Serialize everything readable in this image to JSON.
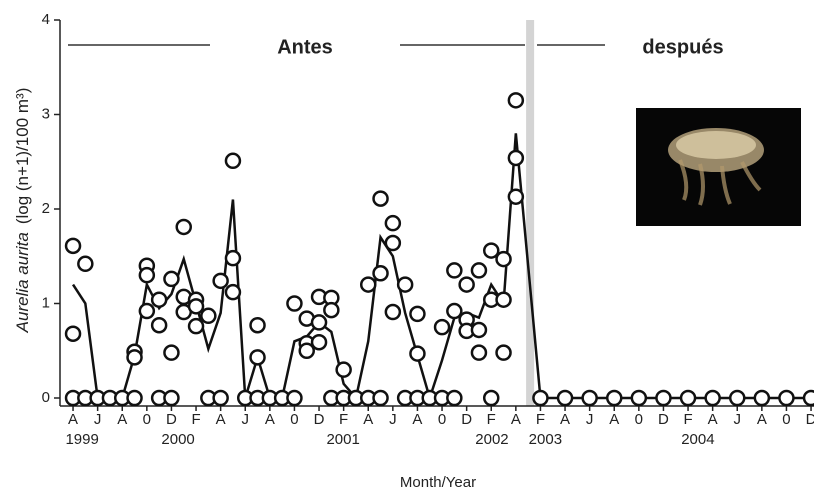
{
  "chart_data": {
    "type": "scatter",
    "annotation_before": "Antes",
    "annotation_after": "después",
    "ylabel_species": "Aurelia aurita",
    "ylabel_units": "(log (n+1)/100 m³)",
    "xlabel": "Month/Year",
    "xlim": [
      -0.53,
      30.12
    ],
    "ylim": [
      0,
      4
    ],
    "yticks": [
      0,
      1,
      2,
      3,
      4
    ],
    "xticks": [
      {
        "value": 0,
        "label": "A"
      },
      {
        "value": 1,
        "label": "J"
      },
      {
        "value": 2,
        "label": "A"
      },
      {
        "value": 3,
        "label": "0"
      },
      {
        "value": 4,
        "label": "D"
      },
      {
        "value": 5,
        "label": "F"
      },
      {
        "value": 6,
        "label": "A"
      },
      {
        "value": 7,
        "label": "J"
      },
      {
        "value": 8,
        "label": "A"
      },
      {
        "value": 9,
        "label": "0"
      },
      {
        "value": 10,
        "label": "D"
      },
      {
        "value": 11,
        "label": "F"
      },
      {
        "value": 12,
        "label": "A"
      },
      {
        "value": 13,
        "label": "J"
      },
      {
        "value": 14,
        "label": "A"
      },
      {
        "value": 15,
        "label": "0"
      },
      {
        "value": 16,
        "label": "D"
      },
      {
        "value": 17,
        "label": "F"
      },
      {
        "value": 18,
        "label": "A"
      },
      {
        "value": 19,
        "label": "F"
      },
      {
        "value": 20,
        "label": "A"
      },
      {
        "value": 21,
        "label": "J"
      },
      {
        "value": 22,
        "label": "A"
      },
      {
        "value": 23,
        "label": "0"
      },
      {
        "value": 24,
        "label": "D"
      },
      {
        "value": 25,
        "label": "F"
      },
      {
        "value": 26,
        "label": "A"
      },
      {
        "value": 27,
        "label": "J"
      },
      {
        "value": 28,
        "label": "A"
      },
      {
        "value": 29,
        "label": "0"
      },
      {
        "value": 30,
        "label": "D"
      }
    ],
    "year_ticks": [
      {
        "value": 0.37,
        "label": "1999"
      },
      {
        "value": 4.27,
        "label": "2000"
      },
      {
        "value": 10.98,
        "label": "2001"
      },
      {
        "value": 17.03,
        "label": "2002"
      },
      {
        "value": 19.2,
        "label": "2003"
      },
      {
        "value": 25.4,
        "label": "2004"
      }
    ],
    "divider_x": 18.58,
    "divider_color": "#d4d4d4",
    "series": [
      {
        "kind": "line",
        "color": "#111111",
        "x": [
          0,
          0.5,
          1,
          1.5,
          2,
          2.5,
          3,
          3.5,
          4,
          4.5,
          5,
          5.5,
          6,
          6.5,
          7,
          7.5,
          8,
          8.5,
          9,
          9.5,
          10,
          10.5,
          11,
          11.5,
          12,
          12.5,
          13,
          13.5,
          14,
          14.5,
          15,
          15.5,
          16,
          16.5,
          17,
          17.5,
          18,
          19,
          20,
          21,
          22,
          23,
          24,
          25,
          26,
          27,
          28,
          29,
          30
        ],
        "values": [
          1.2,
          1.0,
          0,
          0,
          0,
          0.45,
          1.2,
          0.95,
          1.1,
          1.47,
          1.0,
          0.52,
          0.9,
          2.1,
          0,
          0.43,
          0,
          0,
          0.6,
          0.65,
          0.8,
          0.7,
          0.15,
          0,
          0.6,
          1.7,
          1.5,
          0.9,
          0.45,
          0,
          0.4,
          0.85,
          0.9,
          0.85,
          1.2,
          1.0,
          2.8,
          0,
          0,
          0,
          0,
          0,
          0,
          0,
          0,
          0,
          0,
          0,
          0
        ]
      },
      {
        "kind": "points",
        "color": "#111111",
        "x": [
          0,
          0,
          0,
          0.5,
          0.5,
          1,
          1.5,
          2,
          2.5,
          2.5,
          2.5,
          3,
          3,
          3,
          3.5,
          3.5,
          3.5,
          4,
          4,
          4,
          4.5,
          4.5,
          4.5,
          5,
          5,
          5,
          5.5,
          5.5,
          6,
          6,
          6.5,
          6.5,
          6.5,
          7,
          7.5,
          7.5,
          7.5,
          8,
          8.5,
          9,
          9,
          9.5,
          9.5,
          9.5,
          10,
          10,
          10,
          10.5,
          10.5,
          10.5,
          11,
          11,
          11.5,
          12,
          12,
          12.5,
          12.5,
          12.5,
          13,
          13,
          13,
          13.5,
          13.5,
          14,
          14,
          14,
          14.5,
          15,
          15,
          15.5,
          15.5,
          15.5,
          16,
          16,
          16,
          16.5,
          16.5,
          16.5,
          17,
          17,
          17,
          17.5,
          17.5,
          17.5,
          18,
          18,
          18,
          19,
          20,
          21,
          22,
          23,
          24,
          25,
          26,
          27,
          28,
          29,
          30
        ],
        "values": [
          1.61,
          0.68,
          0,
          1.42,
          0,
          0,
          0,
          0,
          0.49,
          0.43,
          0,
          1.4,
          1.3,
          0.92,
          1.04,
          0.77,
          0,
          1.26,
          0.48,
          0,
          1.81,
          1.07,
          0.91,
          1.04,
          0.97,
          0.76,
          0.87,
          0,
          1.24,
          0,
          2.51,
          1.48,
          1.12,
          0,
          0.77,
          0.43,
          0,
          0,
          0,
          1.0,
          0,
          0.84,
          0.58,
          0.5,
          1.07,
          0.8,
          0.59,
          1.06,
          0.93,
          0,
          0.3,
          0,
          0,
          1.2,
          0,
          2.11,
          1.32,
          0,
          1.85,
          1.64,
          0.91,
          1.2,
          0,
          0.89,
          0.47,
          0,
          0,
          0.75,
          0,
          1.35,
          0.92,
          0,
          1.2,
          0.83,
          0.71,
          1.35,
          0.72,
          0.48,
          1.56,
          1.04,
          0,
          1.47,
          1.04,
          0.48,
          3.15,
          2.54,
          2.13,
          0,
          0,
          0,
          0,
          0,
          0,
          0,
          0,
          0,
          0,
          0,
          0
        ]
      }
    ]
  }
}
